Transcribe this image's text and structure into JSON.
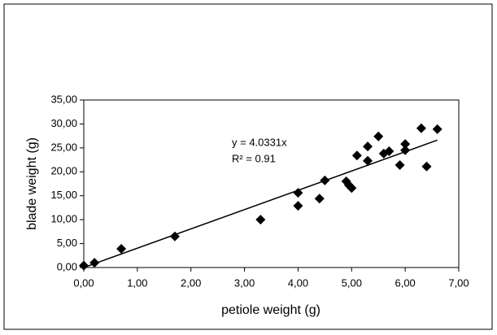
{
  "chart_data": {
    "type": "scatter",
    "x_label": "petiole weight (g)",
    "y_label": "blade weight (g)",
    "xlim": [
      0,
      7
    ],
    "ylim": [
      0,
      35
    ],
    "xticks": [
      {
        "value": 0,
        "label": "0,00"
      },
      {
        "value": 1,
        "label": "1,00"
      },
      {
        "value": 2,
        "label": "2,00"
      },
      {
        "value": 3,
        "label": "3,00"
      },
      {
        "value": 4,
        "label": "4,00"
      },
      {
        "value": 5,
        "label": "5,00"
      },
      {
        "value": 6,
        "label": "6,00"
      },
      {
        "value": 7,
        "label": "7,00"
      }
    ],
    "yticks": [
      {
        "value": 0,
        "label": "0,00"
      },
      {
        "value": 5,
        "label": "5,00"
      },
      {
        "value": 10,
        "label": "10,00"
      },
      {
        "value": 15,
        "label": "15,00"
      },
      {
        "value": 20,
        "label": "20,00"
      },
      {
        "value": 25,
        "label": "25,00"
      },
      {
        "value": 30,
        "label": "30,00"
      },
      {
        "value": 35,
        "label": "35,00"
      }
    ],
    "color": "#000000",
    "x": [
      0.0,
      0.2,
      0.7,
      1.7,
      3.3,
      4.0,
      4.0,
      4.4,
      4.5,
      4.9,
      4.95,
      5.0,
      5.1,
      5.3,
      5.3,
      5.5,
      5.6,
      5.7,
      6.0,
      6.0,
      5.9,
      6.3,
      6.4,
      6.6
    ],
    "values": [
      0.4,
      1.0,
      3.9,
      6.5,
      10.0,
      15.6,
      12.9,
      14.4,
      18.2,
      18.0,
      17.2,
      16.6,
      23.4,
      22.3,
      25.3,
      27.4,
      23.8,
      24.3,
      25.8,
      24.5,
      21.4,
      29.1,
      21.1,
      28.9
    ],
    "trendline": {
      "equation": "y = 4.0331x",
      "slope": 4.0331,
      "r_squared": "R² = 0.91"
    }
  }
}
